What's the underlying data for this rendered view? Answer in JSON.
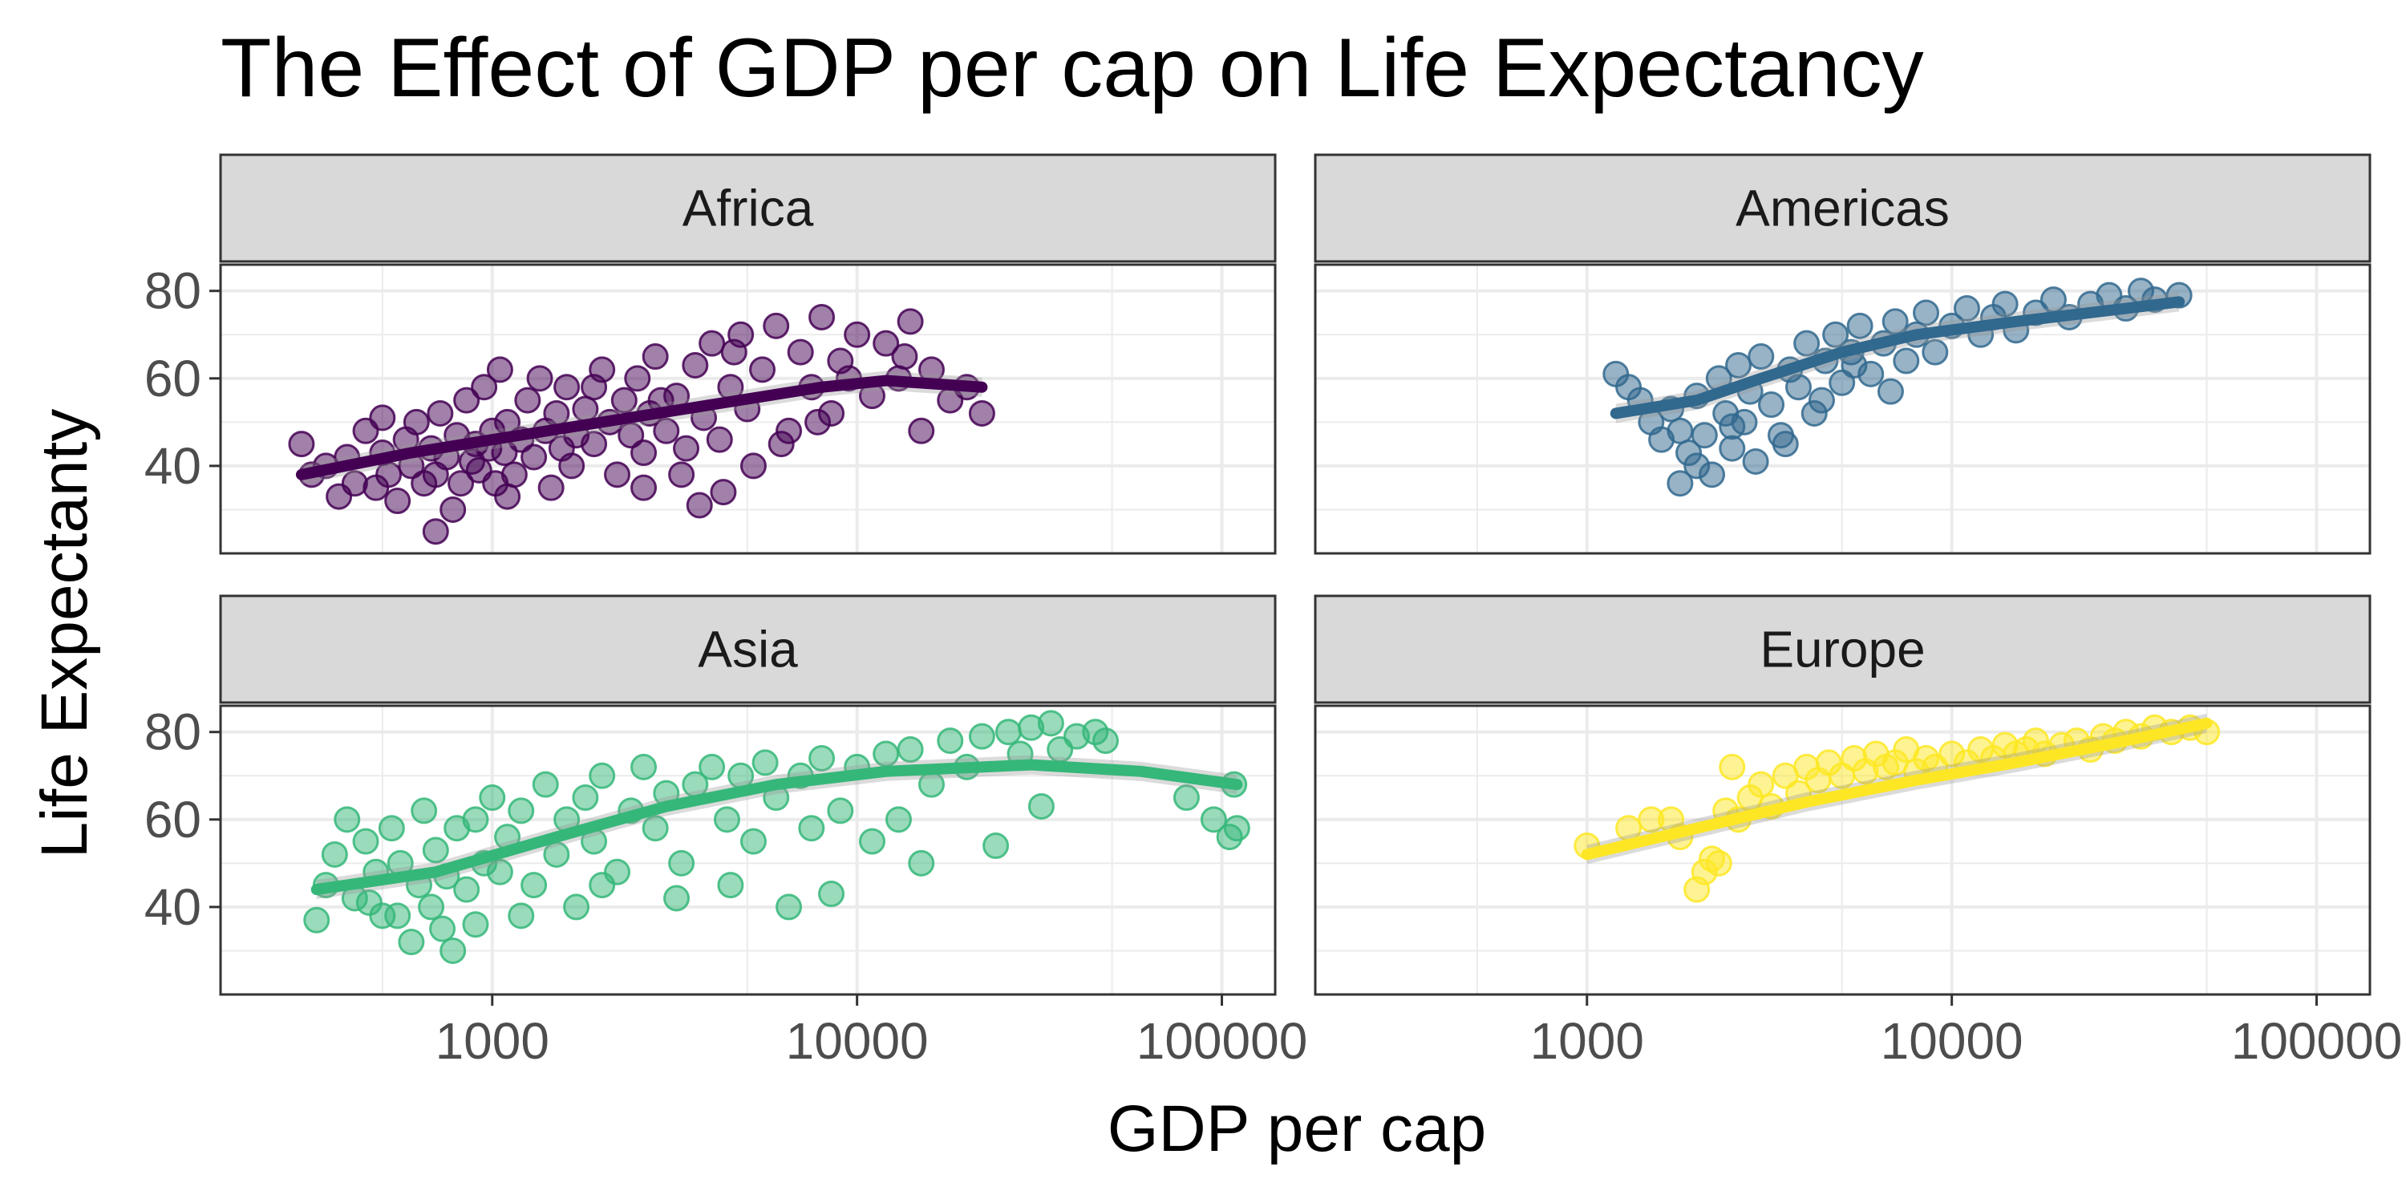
{
  "chart_data": {
    "type": "scatter",
    "title": "The Effect of GDP per cap on Life Expectancy",
    "xlabel": "GDP per cap",
    "ylabel": "Life Expectanty",
    "x_scale": "log10",
    "xlim": [
      180,
      140000
    ],
    "ylim": [
      20,
      86
    ],
    "x_ticks": [
      1000,
      10000,
      100000
    ],
    "x_tick_labels": [
      "1000",
      "10000",
      "100000"
    ],
    "y_ticks": [
      40,
      60,
      80
    ],
    "y_tick_labels": [
      "40",
      "60",
      "80"
    ],
    "grid": true,
    "legend": "none",
    "facets": [
      {
        "name": "Africa",
        "color": "#440154",
        "trend": [
          [
            300,
            38
          ],
          [
            600,
            43
          ],
          [
            1000,
            46
          ],
          [
            2000,
            50
          ],
          [
            4000,
            54
          ],
          [
            8000,
            58
          ],
          [
            12000,
            59.5
          ],
          [
            22000,
            58
          ]
        ],
        "points": [
          [
            300,
            45
          ],
          [
            320,
            38
          ],
          [
            350,
            40
          ],
          [
            380,
            33
          ],
          [
            400,
            42
          ],
          [
            420,
            36
          ],
          [
            450,
            48
          ],
          [
            480,
            35
          ],
          [
            500,
            43
          ],
          [
            520,
            38
          ],
          [
            550,
            32
          ],
          [
            580,
            46
          ],
          [
            600,
            40
          ],
          [
            620,
            50
          ],
          [
            650,
            36
          ],
          [
            680,
            44
          ],
          [
            700,
            38
          ],
          [
            720,
            52
          ],
          [
            750,
            42
          ],
          [
            780,
            30
          ],
          [
            800,
            47
          ],
          [
            820,
            36
          ],
          [
            850,
            55
          ],
          [
            880,
            41
          ],
          [
            900,
            45
          ],
          [
            920,
            39
          ],
          [
            950,
            58
          ],
          [
            980,
            44
          ],
          [
            1000,
            48
          ],
          [
            1020,
            36
          ],
          [
            1050,
            62
          ],
          [
            1080,
            43
          ],
          [
            1100,
            50
          ],
          [
            1150,
            38
          ],
          [
            1200,
            46
          ],
          [
            1250,
            55
          ],
          [
            1300,
            42
          ],
          [
            1350,
            60
          ],
          [
            1400,
            48
          ],
          [
            1450,
            35
          ],
          [
            1500,
            52
          ],
          [
            1550,
            44
          ],
          [
            1600,
            58
          ],
          [
            1650,
            40
          ],
          [
            1700,
            47
          ],
          [
            1800,
            53
          ],
          [
            1900,
            45
          ],
          [
            2000,
            62
          ],
          [
            2100,
            50
          ],
          [
            2200,
            38
          ],
          [
            2300,
            55
          ],
          [
            2400,
            47
          ],
          [
            2500,
            60
          ],
          [
            2600,
            43
          ],
          [
            2700,
            52
          ],
          [
            2800,
            65
          ],
          [
            3000,
            48
          ],
          [
            3200,
            56
          ],
          [
            3400,
            44
          ],
          [
            3600,
            63
          ],
          [
            3800,
            51
          ],
          [
            4000,
            68
          ],
          [
            4200,
            46
          ],
          [
            4500,
            58
          ],
          [
            4800,
            70
          ],
          [
            5000,
            53
          ],
          [
            5500,
            62
          ],
          [
            6000,
            72
          ],
          [
            6500,
            48
          ],
          [
            7000,
            66
          ],
          [
            7500,
            58
          ],
          [
            8000,
            74
          ],
          [
            8500,
            52
          ],
          [
            9000,
            64
          ],
          [
            10000,
            70
          ],
          [
            11000,
            56
          ],
          [
            12000,
            68
          ],
          [
            13000,
            60
          ],
          [
            14000,
            73
          ],
          [
            15000,
            48
          ],
          [
            16000,
            62
          ],
          [
            18000,
            55
          ],
          [
            20000,
            58
          ],
          [
            22000,
            52
          ],
          [
            3300,
            38
          ],
          [
            3700,
            31
          ],
          [
            4300,
            34
          ],
          [
            5200,
            40
          ],
          [
            6200,
            45
          ],
          [
            1900,
            58
          ],
          [
            2600,
            35
          ],
          [
            700,
            25
          ],
          [
            1100,
            33
          ],
          [
            500,
            51
          ],
          [
            2900,
            55
          ],
          [
            4600,
            66
          ],
          [
            7800,
            50
          ],
          [
            9500,
            60
          ],
          [
            13500,
            65
          ]
        ]
      },
      {
        "name": "Americas",
        "color": "#31688e",
        "trend": [
          [
            1200,
            52
          ],
          [
            2000,
            55
          ],
          [
            3000,
            60
          ],
          [
            5000,
            66
          ],
          [
            8000,
            70
          ],
          [
            15000,
            73
          ],
          [
            30000,
            76
          ],
          [
            42000,
            77.5
          ]
        ],
        "points": [
          [
            1200,
            61
          ],
          [
            1300,
            58
          ],
          [
            1400,
            55
          ],
          [
            1500,
            50
          ],
          [
            1600,
            46
          ],
          [
            1700,
            53
          ],
          [
            1800,
            48
          ],
          [
            1900,
            43
          ],
          [
            2000,
            56
          ],
          [
            2100,
            47
          ],
          [
            2200,
            38
          ],
          [
            2300,
            60
          ],
          [
            2400,
            52
          ],
          [
            2500,
            44
          ],
          [
            2600,
            63
          ],
          [
            2700,
            50
          ],
          [
            2800,
            57
          ],
          [
            2900,
            41
          ],
          [
            3000,
            65
          ],
          [
            3200,
            54
          ],
          [
            3400,
            47
          ],
          [
            3600,
            62
          ],
          [
            3800,
            58
          ],
          [
            4000,
            68
          ],
          [
            4200,
            52
          ],
          [
            4500,
            64
          ],
          [
            4800,
            70
          ],
          [
            5000,
            59
          ],
          [
            5300,
            66
          ],
          [
            5600,
            72
          ],
          [
            6000,
            61
          ],
          [
            6500,
            68
          ],
          [
            7000,
            73
          ],
          [
            7500,
            64
          ],
          [
            8000,
            70
          ],
          [
            8500,
            75
          ],
          [
            9000,
            66
          ],
          [
            10000,
            72
          ],
          [
            11000,
            76
          ],
          [
            12000,
            70
          ],
          [
            13000,
            74
          ],
          [
            14000,
            77
          ],
          [
            15000,
            71
          ],
          [
            17000,
            75
          ],
          [
            19000,
            78
          ],
          [
            21000,
            74
          ],
          [
            24000,
            77
          ],
          [
            27000,
            79
          ],
          [
            30000,
            76
          ],
          [
            33000,
            80
          ],
          [
            36000,
            78
          ],
          [
            42000,
            79
          ],
          [
            2500,
            49
          ],
          [
            3500,
            45
          ],
          [
            4400,
            55
          ],
          [
            5400,
            63
          ],
          [
            6800,
            57
          ],
          [
            2000,
            40
          ],
          [
            1800,
            36
          ]
        ]
      },
      {
        "name": "Asia",
        "color": "#35b779",
        "trend": [
          [
            330,
            44
          ],
          [
            700,
            48
          ],
          [
            1500,
            56
          ],
          [
            3000,
            63
          ],
          [
            6000,
            68
          ],
          [
            12000,
            71
          ],
          [
            30000,
            72.5
          ],
          [
            60000,
            71
          ],
          [
            110000,
            68
          ]
        ],
        "points": [
          [
            330,
            37
          ],
          [
            350,
            45
          ],
          [
            370,
            52
          ],
          [
            400,
            60
          ],
          [
            420,
            42
          ],
          [
            450,
            55
          ],
          [
            480,
            48
          ],
          [
            500,
            38
          ],
          [
            530,
            58
          ],
          [
            560,
            50
          ],
          [
            600,
            32
          ],
          [
            630,
            45
          ],
          [
            650,
            62
          ],
          [
            680,
            40
          ],
          [
            700,
            53
          ],
          [
            730,
            35
          ],
          [
            750,
            47
          ],
          [
            780,
            30
          ],
          [
            800,
            58
          ],
          [
            850,
            44
          ],
          [
            900,
            60
          ],
          [
            950,
            50
          ],
          [
            1000,
            65
          ],
          [
            1050,
            48
          ],
          [
            1100,
            56
          ],
          [
            1200,
            62
          ],
          [
            1300,
            45
          ],
          [
            1400,
            68
          ],
          [
            1500,
            52
          ],
          [
            1600,
            60
          ],
          [
            1700,
            40
          ],
          [
            1800,
            65
          ],
          [
            1900,
            55
          ],
          [
            2000,
            70
          ],
          [
            2200,
            48
          ],
          [
            2400,
            62
          ],
          [
            2600,
            72
          ],
          [
            2800,
            58
          ],
          [
            3000,
            66
          ],
          [
            3300,
            50
          ],
          [
            3600,
            68
          ],
          [
            4000,
            72
          ],
          [
            4400,
            60
          ],
          [
            4800,
            70
          ],
          [
            5200,
            55
          ],
          [
            5600,
            73
          ],
          [
            6000,
            65
          ],
          [
            6500,
            40
          ],
          [
            7000,
            70
          ],
          [
            7500,
            58
          ],
          [
            8000,
            74
          ],
          [
            9000,
            62
          ],
          [
            10000,
            72
          ],
          [
            11000,
            55
          ],
          [
            12000,
            75
          ],
          [
            13000,
            60
          ],
          [
            14000,
            76
          ],
          [
            16000,
            68
          ],
          [
            18000,
            78
          ],
          [
            20000,
            72
          ],
          [
            22000,
            79
          ],
          [
            24000,
            54
          ],
          [
            26000,
            80
          ],
          [
            28000,
            75
          ],
          [
            30000,
            81
          ],
          [
            32000,
            63
          ],
          [
            34000,
            82
          ],
          [
            36000,
            76
          ],
          [
            40000,
            79
          ],
          [
            45000,
            80
          ],
          [
            48000,
            78
          ],
          [
            80000,
            65
          ],
          [
            95000,
            60
          ],
          [
            105000,
            56
          ],
          [
            110000,
            58
          ],
          [
            108000,
            68
          ],
          [
            2000,
            45
          ],
          [
            3200,
            42
          ],
          [
            1200,
            38
          ],
          [
            900,
            36
          ],
          [
            4500,
            45
          ],
          [
            15000,
            50
          ],
          [
            8500,
            43
          ],
          [
            550,
            38
          ],
          [
            460,
            41
          ]
        ]
      },
      {
        "name": "Europe",
        "color": "#fde725",
        "trend": [
          [
            1000,
            52
          ],
          [
            2000,
            58
          ],
          [
            4000,
            64
          ],
          [
            8000,
            69
          ],
          [
            15000,
            73
          ],
          [
            30000,
            78
          ],
          [
            50000,
            82
          ]
        ],
        "points": [
          [
            1000,
            54
          ],
          [
            1300,
            58
          ],
          [
            1500,
            60
          ],
          [
            1800,
            56
          ],
          [
            2000,
            44
          ],
          [
            2100,
            48
          ],
          [
            2200,
            51
          ],
          [
            2400,
            62
          ],
          [
            2500,
            72
          ],
          [
            2600,
            60
          ],
          [
            2800,
            65
          ],
          [
            3000,
            68
          ],
          [
            3200,
            63
          ],
          [
            3500,
            70
          ],
          [
            3800,
            66
          ],
          [
            4000,
            72
          ],
          [
            4300,
            69
          ],
          [
            4600,
            73
          ],
          [
            5000,
            70
          ],
          [
            5400,
            74
          ],
          [
            5800,
            71
          ],
          [
            6200,
            75
          ],
          [
            6600,
            72
          ],
          [
            7000,
            73
          ],
          [
            7500,
            76
          ],
          [
            8000,
            71
          ],
          [
            8500,
            74
          ],
          [
            9000,
            72
          ],
          [
            10000,
            75
          ],
          [
            11000,
            73
          ],
          [
            12000,
            76
          ],
          [
            13000,
            74
          ],
          [
            14000,
            77
          ],
          [
            15000,
            75
          ],
          [
            16000,
            76
          ],
          [
            17000,
            78
          ],
          [
            18000,
            75
          ],
          [
            20000,
            77
          ],
          [
            22000,
            78
          ],
          [
            24000,
            76
          ],
          [
            26000,
            79
          ],
          [
            28000,
            78
          ],
          [
            30000,
            80
          ],
          [
            33000,
            79
          ],
          [
            36000,
            81
          ],
          [
            40000,
            80
          ],
          [
            45000,
            81
          ],
          [
            50000,
            80
          ],
          [
            2300,
            50
          ],
          [
            1700,
            60
          ]
        ]
      }
    ]
  }
}
